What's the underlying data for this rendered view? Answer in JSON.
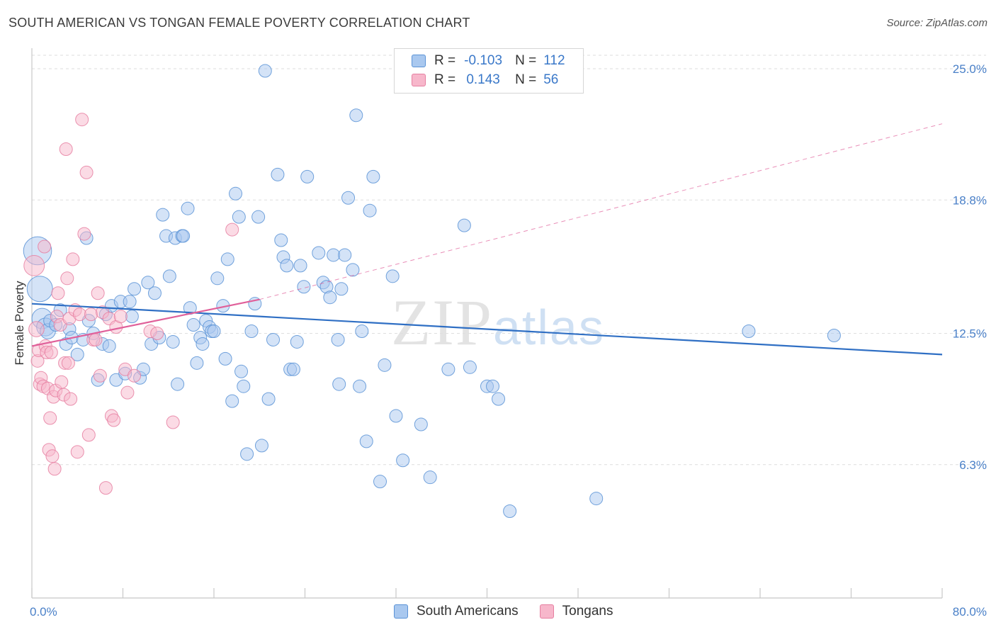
{
  "title": "SOUTH AMERICAN VS TONGAN FEMALE POVERTY CORRELATION CHART",
  "source": "Source: ZipAtlas.com",
  "watermark": {
    "zip": "ZIP",
    "atlas": "atlas"
  },
  "colors": {
    "blue_fill": "#a9c8ef",
    "blue_stroke": "#5b93d6",
    "blue_line": "#2f6fc4",
    "pink_fill": "#f7b7cb",
    "pink_stroke": "#e67fa1",
    "pink_line": "#e0609a",
    "tick_text": "#4a80c8",
    "grid": "#dedede"
  },
  "legend": {
    "rows": [
      {
        "r_label": "R =",
        "r_value": "-0.103",
        "n_label": "N =",
        "n_value": "112",
        "color": "#a9c8ef",
        "stroke": "#5b93d6"
      },
      {
        "r_label": "R =",
        "r_value": "0.143",
        "n_label": "N =",
        "n_value": "56",
        "color": "#f7b7cb",
        "stroke": "#e67fa1"
      }
    ]
  },
  "bottom_legend": [
    {
      "label": "South Americans",
      "color": "#a9c8ef",
      "stroke": "#5b93d6"
    },
    {
      "label": "Tongans",
      "color": "#f7b7cb",
      "stroke": "#e67fa1"
    }
  ],
  "chart_data": {
    "type": "scatter",
    "title": "SOUTH AMERICAN VS TONGAN FEMALE POVERTY CORRELATION CHART",
    "xlabel": "",
    "ylabel": "Female Poverty",
    "xlim": [
      0,
      80
    ],
    "ylim": [
      0,
      25.9
    ],
    "x_tick_labels": [
      {
        "value": 0,
        "label": "0.0%"
      },
      {
        "value": 80,
        "label": "80.0%"
      }
    ],
    "y_tick_labels": [
      {
        "value": 6.3,
        "label": "6.3%"
      },
      {
        "value": 12.5,
        "label": "12.5%"
      },
      {
        "value": 18.8,
        "label": "18.8%"
      },
      {
        "value": 25.0,
        "label": "25.0%"
      }
    ],
    "grid": "horizontal dashed",
    "series": [
      {
        "name": "South Americans",
        "r": -0.103,
        "n": 112,
        "trend": {
          "x": [
            0,
            80
          ],
          "y": [
            13.9,
            11.5
          ],
          "style": "solid"
        },
        "points": [
          [
            0.5,
            16.4,
            2.2
          ],
          [
            0.7,
            14.6,
            2.0
          ],
          [
            0.9,
            13.2,
            1.6
          ],
          [
            1.2,
            12.8,
            1.4
          ],
          [
            1.4,
            12.6,
            1.2
          ],
          [
            1.6,
            13.1,
            1.0
          ],
          [
            2.1,
            12.9,
            1.0
          ],
          [
            2.5,
            13.6,
            1.0
          ],
          [
            3.0,
            12.0,
            1.0
          ],
          [
            3.3,
            12.7,
            1.0
          ],
          [
            3.5,
            12.3,
            1.0
          ],
          [
            4.0,
            11.5,
            1.0
          ],
          [
            4.5,
            12.2,
            1.0
          ],
          [
            4.8,
            17.0,
            1.0
          ],
          [
            5.0,
            13.1,
            1.0
          ],
          [
            5.4,
            12.5,
            1.0
          ],
          [
            5.8,
            10.3,
            1.0
          ],
          [
            6.2,
            12.0,
            1.0
          ],
          [
            6.5,
            13.4,
            1.0
          ],
          [
            6.8,
            11.9,
            1.0
          ],
          [
            7.0,
            13.8,
            1.0
          ],
          [
            7.4,
            10.3,
            1.0
          ],
          [
            7.8,
            14.0,
            1.0
          ],
          [
            8.2,
            10.6,
            1.0
          ],
          [
            8.6,
            14.0,
            1.0
          ],
          [
            8.8,
            13.3,
            1.0
          ],
          [
            9.0,
            14.6,
            1.0
          ],
          [
            9.5,
            10.4,
            1.0
          ],
          [
            9.8,
            10.8,
            1.0
          ],
          [
            10.2,
            14.9,
            1.0
          ],
          [
            10.5,
            12.0,
            1.0
          ],
          [
            10.8,
            14.4,
            1.0
          ],
          [
            11.2,
            12.3,
            1.0
          ],
          [
            11.5,
            18.1,
            1.0
          ],
          [
            11.8,
            17.1,
            1.0
          ],
          [
            12.1,
            15.2,
            1.0
          ],
          [
            12.4,
            12.1,
            1.0
          ],
          [
            12.8,
            10.1,
            1.0
          ],
          [
            12.6,
            17.0,
            1.0
          ],
          [
            13.2,
            17.1,
            1.0
          ],
          [
            13.3,
            17.1,
            1.0
          ],
          [
            13.7,
            18.4,
            1.0
          ],
          [
            13.9,
            13.7,
            1.0
          ],
          [
            14.2,
            12.9,
            1.0
          ],
          [
            14.5,
            11.1,
            1.0
          ],
          [
            14.8,
            12.3,
            1.0
          ],
          [
            15.0,
            12.0,
            1.0
          ],
          [
            15.3,
            13.1,
            1.0
          ],
          [
            15.6,
            12.8,
            1.0
          ],
          [
            15.8,
            12.6,
            1.0
          ],
          [
            16.0,
            12.6,
            1.0
          ],
          [
            16.3,
            15.1,
            1.0
          ],
          [
            16.8,
            13.8,
            1.0
          ],
          [
            17.0,
            11.3,
            1.0
          ],
          [
            17.2,
            16.0,
            1.0
          ],
          [
            17.6,
            9.3,
            1.0
          ],
          [
            17.9,
            19.1,
            1.0
          ],
          [
            18.2,
            18.0,
            1.0
          ],
          [
            18.4,
            10.7,
            1.0
          ],
          [
            18.6,
            10.0,
            1.0
          ],
          [
            18.9,
            6.8,
            1.0
          ],
          [
            19.3,
            12.6,
            1.0
          ],
          [
            19.6,
            13.9,
            1.0
          ],
          [
            19.9,
            18.0,
            1.0
          ],
          [
            20.2,
            7.2,
            1.0
          ],
          [
            20.5,
            24.9,
            1.0
          ],
          [
            20.8,
            9.4,
            1.0
          ],
          [
            21.2,
            12.2,
            1.0
          ],
          [
            21.6,
            20.0,
            1.0
          ],
          [
            21.9,
            16.9,
            1.0
          ],
          [
            22.1,
            16.1,
            1.0
          ],
          [
            22.4,
            15.7,
            1.0
          ],
          [
            22.7,
            10.8,
            1.0
          ],
          [
            23.0,
            10.8,
            1.0
          ],
          [
            23.3,
            12.1,
            1.0
          ],
          [
            23.6,
            15.7,
            1.0
          ],
          [
            23.9,
            14.7,
            1.0
          ],
          [
            24.2,
            19.9,
            1.0
          ],
          [
            25.2,
            16.3,
            1.0
          ],
          [
            25.6,
            14.9,
            1.0
          ],
          [
            25.9,
            14.7,
            1.0
          ],
          [
            26.2,
            14.2,
            1.0
          ],
          [
            26.5,
            16.2,
            1.0
          ],
          [
            26.9,
            12.2,
            1.0
          ],
          [
            27.2,
            14.6,
            1.0
          ],
          [
            27.5,
            16.2,
            1.0
          ],
          [
            27.8,
            18.9,
            1.0
          ],
          [
            28.2,
            15.5,
            1.0
          ],
          [
            28.5,
            22.8,
            1.0
          ],
          [
            28.8,
            10.0,
            1.0
          ],
          [
            29.0,
            12.6,
            1.0
          ],
          [
            29.4,
            7.4,
            1.0
          ],
          [
            29.7,
            18.3,
            1.0
          ],
          [
            30.0,
            19.9,
            1.0
          ],
          [
            30.6,
            5.5,
            1.0
          ],
          [
            31.0,
            11.0,
            1.0
          ],
          [
            31.7,
            15.2,
            1.0
          ],
          [
            32.0,
            8.6,
            1.0
          ],
          [
            32.6,
            6.5,
            1.0
          ],
          [
            34.2,
            8.2,
            1.0
          ],
          [
            35.0,
            5.7,
            1.0
          ],
          [
            36.6,
            10.8,
            1.0
          ],
          [
            38.0,
            17.6,
            1.0
          ],
          [
            40.0,
            10.0,
            1.0
          ],
          [
            40.5,
            10.0,
            1.0
          ],
          [
            41.0,
            9.4,
            1.0
          ],
          [
            42.0,
            4.1,
            1.0
          ],
          [
            49.6,
            4.7,
            1.0
          ],
          [
            63.0,
            12.6,
            1.0
          ],
          [
            70.5,
            12.4,
            1.0
          ],
          [
            38.5,
            10.9,
            1.0
          ],
          [
            27.0,
            10.1,
            1.0
          ]
        ]
      },
      {
        "name": "Tongans",
        "r": 0.143,
        "n": 56,
        "trend": {
          "x": [
            0,
            20
          ],
          "y": [
            11.9,
            14.1
          ],
          "style": "solid",
          "extended_to": [
            80,
            22.4
          ],
          "extended_style": "dashed"
        },
        "points": [
          [
            0.2,
            15.7,
            1.6
          ],
          [
            0.4,
            12.7,
            1.2
          ],
          [
            0.5,
            11.2,
            1.0
          ],
          [
            0.6,
            11.7,
            1.0
          ],
          [
            0.7,
            10.1,
            1.0
          ],
          [
            0.8,
            10.4,
            1.0
          ],
          [
            1.0,
            10.0,
            1.0
          ],
          [
            1.1,
            16.6,
            1.0
          ],
          [
            1.2,
            11.9,
            1.0
          ],
          [
            1.3,
            11.6,
            1.0
          ],
          [
            1.4,
            9.9,
            1.0
          ],
          [
            1.5,
            7.0,
            1.0
          ],
          [
            1.6,
            8.5,
            1.0
          ],
          [
            1.7,
            11.6,
            1.0
          ],
          [
            1.8,
            6.7,
            1.0
          ],
          [
            1.9,
            9.5,
            1.0
          ],
          [
            2.0,
            6.1,
            1.0
          ],
          [
            2.1,
            9.8,
            1.0
          ],
          [
            2.2,
            13.3,
            1.0
          ],
          [
            2.3,
            14.4,
            1.0
          ],
          [
            2.5,
            12.9,
            1.0
          ],
          [
            2.6,
            10.2,
            1.0
          ],
          [
            2.8,
            9.6,
            1.0
          ],
          [
            2.9,
            11.1,
            1.0
          ],
          [
            3.0,
            21.2,
            1.0
          ],
          [
            3.1,
            15.1,
            1.0
          ],
          [
            3.2,
            11.1,
            1.0
          ],
          [
            3.3,
            13.2,
            1.0
          ],
          [
            3.4,
            9.4,
            1.0
          ],
          [
            3.6,
            16.0,
            1.0
          ],
          [
            3.8,
            13.6,
            1.0
          ],
          [
            4.0,
            6.9,
            1.0
          ],
          [
            4.2,
            13.4,
            1.0
          ],
          [
            4.4,
            22.6,
            1.0
          ],
          [
            4.6,
            17.2,
            1.0
          ],
          [
            4.8,
            20.1,
            1.0
          ],
          [
            5.0,
            7.7,
            1.0
          ],
          [
            5.2,
            13.4,
            1.0
          ],
          [
            5.4,
            12.2,
            1.0
          ],
          [
            5.6,
            12.2,
            1.0
          ],
          [
            5.8,
            14.4,
            1.0
          ],
          [
            6.0,
            10.5,
            1.0
          ],
          [
            6.2,
            13.5,
            1.0
          ],
          [
            6.5,
            5.2,
            1.0
          ],
          [
            6.8,
            13.2,
            1.0
          ],
          [
            7.0,
            8.6,
            1.0
          ],
          [
            7.2,
            8.4,
            1.0
          ],
          [
            7.4,
            12.8,
            1.0
          ],
          [
            7.8,
            13.3,
            1.0
          ],
          [
            8.2,
            10.8,
            1.0
          ],
          [
            8.4,
            9.7,
            1.0
          ],
          [
            9.0,
            10.5,
            1.0
          ],
          [
            10.4,
            12.6,
            1.0
          ],
          [
            11.0,
            12.5,
            1.0
          ],
          [
            12.4,
            8.3,
            1.0
          ],
          [
            17.6,
            17.4,
            1.0
          ]
        ]
      }
    ]
  }
}
